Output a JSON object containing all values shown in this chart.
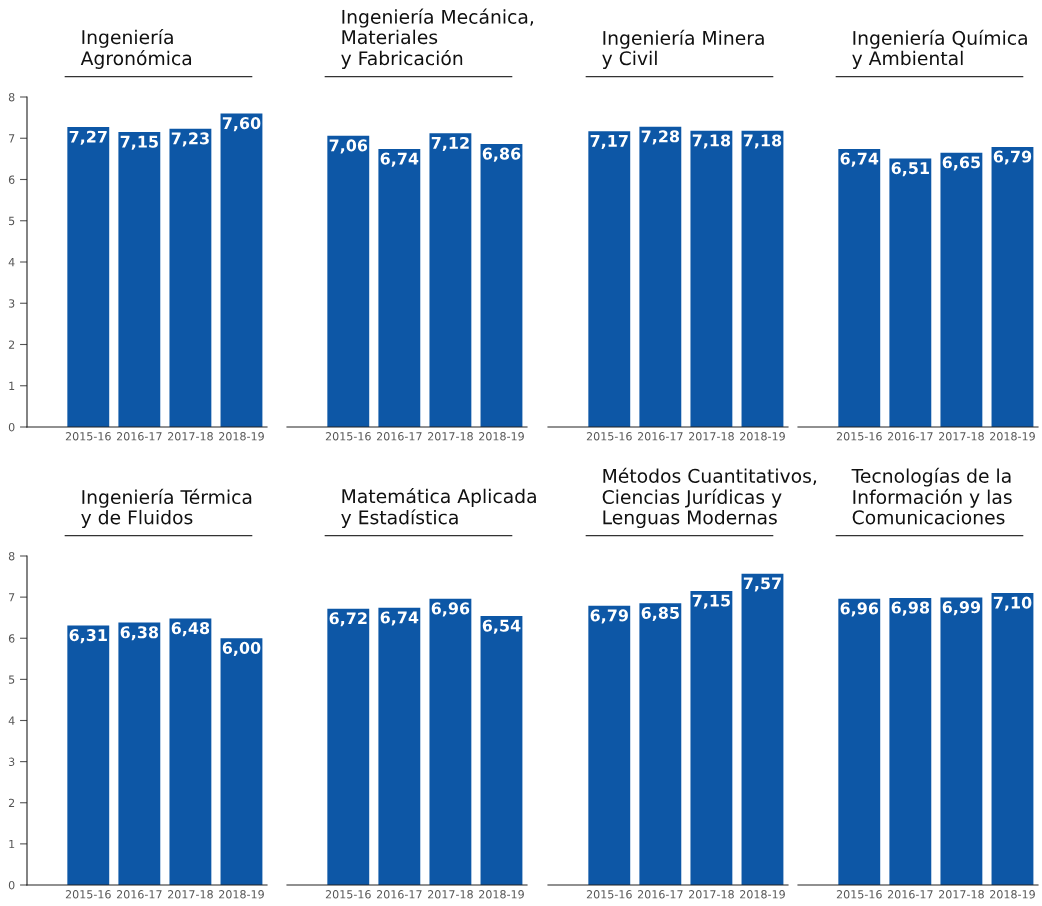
{
  "chart_data": [
    {
      "type": "bar",
      "title": "Ingeniería\nAgronómica",
      "categories": [
        "2015-16",
        "2016-17",
        "2017-18",
        "2018-19"
      ],
      "values": [
        7.27,
        7.15,
        7.23,
        7.6
      ],
      "value_labels": [
        "7,27",
        "7,15",
        "7,23",
        "7,60"
      ],
      "color": "#0d57a6",
      "ylim": [
        0,
        8
      ],
      "yticks": [
        0,
        1,
        2,
        3,
        4,
        5,
        6,
        7,
        8
      ],
      "grid": false
    },
    {
      "type": "bar",
      "title": "Ingeniería Mecánica,\nMateriales\ny Fabricación",
      "categories": [
        "2015-16",
        "2016-17",
        "2017-18",
        "2018-19"
      ],
      "values": [
        7.06,
        6.74,
        7.12,
        6.86
      ],
      "value_labels": [
        "7,06",
        "6,74",
        "7,12",
        "6,86"
      ],
      "color": "#0d57a6",
      "ylim": [
        0,
        8
      ],
      "tick_labels": "x",
      "grid": false
    },
    {
      "type": "bar",
      "title": "Ingeniería Minera\ny Civil",
      "categories": [
        "2015-16",
        "2016-17",
        "2017-18",
        "2018-19"
      ],
      "values": [
        7.17,
        7.28,
        7.18,
        7.18
      ],
      "value_labels": [
        "7,17",
        "7,28",
        "7,18",
        "7,18"
      ],
      "color": "#0d57a6",
      "ylim": [
        0,
        8
      ],
      "tick_labels": "x",
      "grid": false
    },
    {
      "type": "bar",
      "title": "Ingeniería Química\ny Ambiental",
      "categories": [
        "2015-16",
        "2016-17",
        "2017-18",
        "2018-19"
      ],
      "values": [
        6.74,
        6.51,
        6.65,
        6.79
      ],
      "value_labels": [
        "6,74",
        "6,51",
        "6,65",
        "6,79"
      ],
      "color": "#0d57a6",
      "ylim": [
        0,
        8
      ],
      "tick_labels": "x",
      "grid": false
    },
    {
      "type": "bar",
      "title": "Ingeniería Térmica\ny de Fluidos",
      "categories": [
        "2015-16",
        "2016-17",
        "2017-18",
        "2018-19"
      ],
      "values": [
        6.31,
        6.38,
        6.48,
        6.0
      ],
      "value_labels": [
        "6,31",
        "6,38",
        "6,48",
        "6,00"
      ],
      "color": "#0d57a6",
      "ylim": [
        0,
        8
      ],
      "yticks": [
        0,
        1,
        2,
        3,
        4,
        5,
        6,
        7,
        8
      ],
      "grid": false
    },
    {
      "type": "bar",
      "title": "Matemática Aplicada\ny Estadística",
      "categories": [
        "2015-16",
        "2016-17",
        "2017-18",
        "2018-19"
      ],
      "values": [
        6.72,
        6.74,
        6.96,
        6.54
      ],
      "value_labels": [
        "6,72",
        "6,74",
        "6,96",
        "6,54"
      ],
      "color": "#0d57a6",
      "ylim": [
        0,
        8
      ],
      "tick_labels": "x",
      "grid": false
    },
    {
      "type": "bar",
      "title": "Métodos Cuantitativos,\nCiencias Jurídicas y\nLenguas Modernas",
      "categories": [
        "2015-16",
        "2016-17",
        "2017-18",
        "2018-19"
      ],
      "values": [
        6.79,
        6.85,
        7.15,
        7.57
      ],
      "value_labels": [
        "6,79",
        "6,85",
        "7,15",
        "7,57"
      ],
      "color": "#0d57a6",
      "ylim": [
        0,
        8
      ],
      "tick_labels": "x",
      "grid": false
    },
    {
      "type": "bar",
      "title": "Tecnologías de la\nInformación y las\nComunicaciones",
      "categories": [
        "2015-16",
        "2016-17",
        "2017-18",
        "2018-19"
      ],
      "values": [
        6.96,
        6.98,
        6.99,
        7.1
      ],
      "value_labels": [
        "6,96",
        "6,98",
        "6,99",
        "7,10"
      ],
      "color": "#0d57a6",
      "ylim": [
        0,
        8
      ],
      "tick_labels": "x",
      "grid": false
    }
  ]
}
